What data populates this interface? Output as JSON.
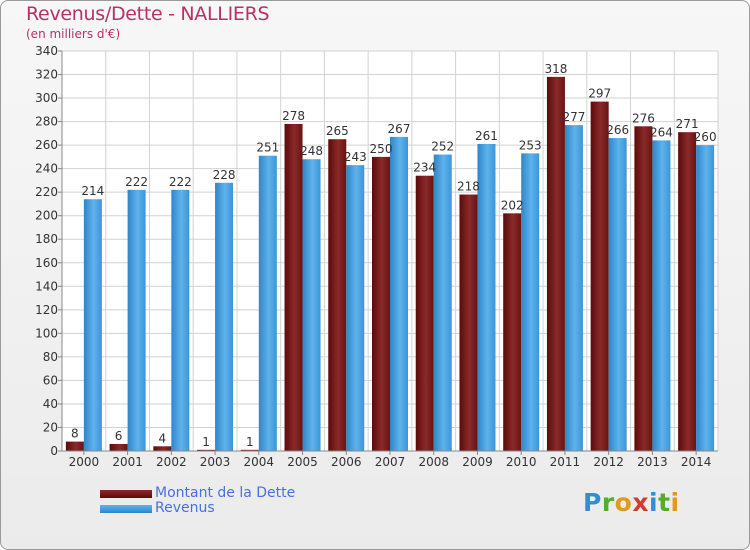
{
  "chart_data": {
    "type": "bar",
    "title": "Revenus/Dette - NALLIERS",
    "subtitle": "(en milliers d'€)",
    "xlabel": "",
    "ylabel": "",
    "ylim": [
      0,
      340
    ],
    "y_ticks": [
      0,
      20,
      40,
      60,
      80,
      100,
      120,
      140,
      160,
      180,
      200,
      220,
      240,
      260,
      280,
      300,
      320,
      340
    ],
    "grid": true,
    "legend_position": "bottom-left",
    "categories": [
      "2000",
      "2001",
      "2002",
      "2003",
      "2004",
      "2005",
      "2006",
      "2007",
      "2008",
      "2009",
      "2010",
      "2011",
      "2012",
      "2013",
      "2014"
    ],
    "series": [
      {
        "name": "Montant de la Dette",
        "color": "#7a1a1a",
        "values": [
          8,
          6,
          4,
          1,
          1,
          278,
          265,
          250,
          234,
          218,
          202,
          318,
          297,
          276,
          271
        ]
      },
      {
        "name": "Revenus",
        "color": "#4aa3e0",
        "values": [
          214,
          222,
          222,
          228,
          251,
          248,
          243,
          267,
          252,
          261,
          253,
          277,
          266,
          264,
          260
        ]
      }
    ]
  },
  "logo": {
    "letters": [
      "P",
      "r",
      "o",
      "x",
      "i",
      "t",
      "i"
    ]
  }
}
